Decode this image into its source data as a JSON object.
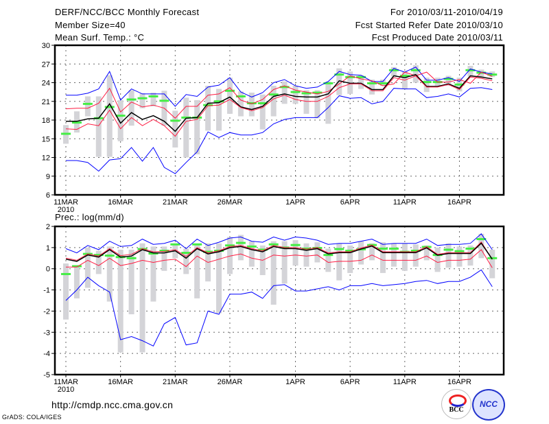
{
  "header": {
    "title": "DERF/NCC/BCC Monthly Forecast",
    "member_size": "Member Size=40",
    "variable": "Mean Surf. Temp.: °C",
    "period": "For 2010/03/11-2010/04/19",
    "start_date": "Fcst Started Refer Date 2010/03/10",
    "produced_date": "Fcst Produced Date 2010/03/11"
  },
  "footer": {
    "url": "http://cmdp.ncc.cma.gov.cn",
    "credit": "GrADS: COLA/IGES",
    "logo_bcc": "BCC",
    "logo_ncc": "NCC"
  },
  "colors": {
    "max_min": "#0000ff",
    "spread": "#ff1a40",
    "mean": "#000000",
    "obs": "#44ee44",
    "bar": "#d4d4d8"
  },
  "chart_data": [
    {
      "type": "line",
      "title": "Mean Surf. Temp.: °C",
      "ylim": [
        6,
        30
      ],
      "yticks": [
        "6",
        "9",
        "12",
        "15",
        "18",
        "21",
        "24",
        "27",
        "30"
      ],
      "xticks": [
        {
          "day": 0,
          "label": "11MAR",
          "sub": "2010"
        },
        {
          "day": 5,
          "label": "16MAR"
        },
        {
          "day": 10,
          "label": "21MAR"
        },
        {
          "day": 15,
          "label": "26MAR"
        },
        {
          "day": 21,
          "label": "1APR"
        },
        {
          "day": 26,
          "label": "6APR"
        },
        {
          "day": 31,
          "label": "11APR"
        },
        {
          "day": 36,
          "label": "16APR"
        }
      ],
      "grid": true,
      "days": 40,
      "bar_low": [
        14.2,
        16.0,
        18.6,
        12.1,
        12.1,
        14.6,
        17.1,
        19.9,
        20.2,
        17.1,
        13.6,
        12.0,
        12.5,
        16.3,
        16.3,
        19.0,
        18.6,
        18.6,
        16.5,
        18.6,
        20.6,
        20.6,
        19.0,
        18.3,
        17.4,
        22.0,
        22.2,
        23.0,
        22.1,
        23.5,
        25.0,
        23.0,
        24.0,
        22.5,
        23.5,
        23.5,
        22.6,
        25.0,
        24.8,
        24.9
      ],
      "bar_high": [
        17.2,
        19.4,
        21.8,
        21.8,
        25.2,
        21.2,
        22.8,
        22.3,
        22.4,
        22.7,
        19.5,
        21.6,
        21.2,
        23.5,
        23.0,
        24.8,
        22.6,
        22.4,
        22.1,
        23.5,
        24.2,
        23.5,
        22.8,
        22.8,
        24.2,
        26.3,
        25.8,
        25.2,
        24.5,
        24.5,
        26.5,
        25.8,
        26.8,
        24.8,
        24.8,
        25.1,
        24.8,
        26.7,
        26.1,
        25.8
      ],
      "series": [
        {
          "name": "max",
          "color": "#0000ff",
          "values": [
            22.0,
            22.0,
            22.3,
            23.0,
            25.8,
            21.2,
            23.0,
            22.2,
            22.2,
            22.2,
            20.2,
            22.1,
            21.8,
            23.3,
            23.6,
            24.8,
            22.5,
            21.7,
            22.4,
            24.0,
            24.5,
            23.5,
            23.1,
            23.3,
            24.2,
            25.8,
            25.3,
            25.2,
            24.2,
            24.2,
            26.3,
            25.7,
            26.5,
            24.4,
            24.4,
            24.8,
            24.2,
            26.2,
            25.7,
            25.4
          ]
        },
        {
          "name": "upper",
          "color": "#ff1a40",
          "values": [
            19.8,
            19.9,
            19.9,
            20.7,
            23.1,
            19.3,
            20.9,
            20.1,
            20.4,
            19.9,
            18.3,
            20.2,
            20.2,
            22.0,
            22.2,
            23.2,
            21.2,
            20.6,
            21.3,
            22.9,
            23.5,
            22.8,
            22.5,
            22.2,
            22.6,
            23.8,
            25.1,
            24.6,
            24.3,
            23.5,
            23.8,
            25.7,
            25.1,
            25.7,
            24.1,
            24.1,
            24.5,
            23.9,
            25.7,
            25.0
          ]
        },
        {
          "name": "mean",
          "color": "#000000",
          "values": [
            17.8,
            17.8,
            18.2,
            18.3,
            20.6,
            17.5,
            19.2,
            18.1,
            18.7,
            17.8,
            16.2,
            18.3,
            18.4,
            20.7,
            20.8,
            21.7,
            20.1,
            19.7,
            20.2,
            21.8,
            22.2,
            21.8,
            21.7,
            21.7,
            22.2,
            24.3,
            23.9,
            23.9,
            22.9,
            22.9,
            25.1,
            24.8,
            25.3,
            23.4,
            23.4,
            23.8,
            23.1,
            25.1,
            24.9,
            24.6
          ]
        },
        {
          "name": "lower",
          "color": "#ff1a40",
          "values": [
            16.6,
            16.5,
            17.4,
            17.1,
            19.6,
            16.6,
            18.4,
            17.1,
            18.1,
            17.1,
            15.4,
            17.8,
            18.1,
            20.3,
            20.4,
            21.3,
            20.0,
            19.5,
            20.0,
            21.4,
            22.0,
            21.3,
            21.0,
            21.0,
            21.8,
            23.2,
            23.8,
            23.8,
            22.7,
            22.7,
            24.8,
            24.4,
            25.1,
            23.3,
            23.3,
            23.7,
            22.9,
            24.9,
            24.7,
            24.3
          ]
        },
        {
          "name": "min",
          "color": "#0000ff",
          "values": [
            11.5,
            11.5,
            11.2,
            9.8,
            11.6,
            11.8,
            13.6,
            11.4,
            13.6,
            10.4,
            9.4,
            11.2,
            12.9,
            16.1,
            15.2,
            16.0,
            15.6,
            15.6,
            16.0,
            17.4,
            18.1,
            18.4,
            18.4,
            18.4,
            20.0,
            21.9,
            21.5,
            21.6,
            20.6,
            21.0,
            23.1,
            23.0,
            23.0,
            21.6,
            21.8,
            22.2,
            21.7,
            23.1,
            23.2,
            22.9
          ]
        }
      ],
      "markers": {
        "name": "green",
        "color": "#44ee44",
        "values": [
          15.8,
          17.6,
          20.6,
          18.3,
          20.1,
          18.7,
          21.3,
          21.5,
          21.8,
          21.1,
          17.9,
          18.4,
          18.4,
          20.4,
          21.0,
          22.7,
          21.8,
          20.7,
          20.7,
          22.1,
          23.3,
          22.5,
          22.3,
          22.4,
          23.9,
          25.3,
          24.9,
          24.9,
          23.9,
          23.9,
          26.0,
          25.1,
          26.0,
          24.1,
          24.1,
          24.6,
          23.7,
          26.0,
          25.6,
          25.3
        ]
      }
    },
    {
      "type": "line",
      "title": "Prec.: log(mm/d)",
      "ylim": [
        -5,
        2
      ],
      "yticks": [
        "-5",
        "-4",
        "-3",
        "-2",
        "-1",
        "0",
        "1",
        "2"
      ],
      "xticks": [
        {
          "day": 0,
          "label": "11MAR",
          "sub": "2010"
        },
        {
          "day": 5,
          "label": "16MAR"
        },
        {
          "day": 10,
          "label": "21MAR"
        },
        {
          "day": 15,
          "label": "26MAR"
        },
        {
          "day": 21,
          "label": "1APR"
        },
        {
          "day": 26,
          "label": "6APR"
        },
        {
          "day": 31,
          "label": "11APR"
        },
        {
          "day": 36,
          "label": "16APR"
        }
      ],
      "grid": true,
      "days": 40,
      "bar_low": [
        -2.4,
        -1.4,
        -0.9,
        -0.25,
        -1.55,
        -3.95,
        -2.15,
        -3.95,
        -1.55,
        -0.1,
        0.5,
        -0.25,
        -1.4,
        -0.6,
        -2.1,
        -0.25,
        0.4,
        0.1,
        -0.3,
        -1.7,
        -0.7,
        0.15,
        0.1,
        0.3,
        -0.15,
        -0.55,
        -0.2,
        0.2,
        0.4,
        -0.2,
        0.1,
        -0.1,
        0.1,
        0.4,
        -0.15,
        0.05,
        0.1,
        0.15,
        0.5,
        -0.45
      ],
      "bar_high": [
        0.25,
        0.1,
        1.0,
        0.85,
        1.05,
        0.9,
        0.9,
        1.2,
        1.05,
        1.05,
        1.2,
        0.95,
        1.15,
        1.2,
        1.2,
        1.5,
        1.6,
        1.3,
        1.1,
        1.3,
        1.3,
        1.35,
        1.2,
        1.25,
        0.95,
        1.2,
        1.1,
        1.3,
        1.2,
        1.25,
        1.2,
        1.2,
        1.15,
        1.1,
        1.0,
        1.2,
        1.05,
        1.1,
        1.65,
        0.9
      ],
      "series": [
        {
          "name": "max",
          "color": "#0000ff",
          "values": [
            0.95,
            0.75,
            1.1,
            0.9,
            1.3,
            1.05,
            1.1,
            1.4,
            1.15,
            1.2,
            1.35,
            0.95,
            1.4,
            1.1,
            1.25,
            1.45,
            1.5,
            1.3,
            1.25,
            1.5,
            1.35,
            1.5,
            1.45,
            1.35,
            1.15,
            1.2,
            1.2,
            1.3,
            1.4,
            1.15,
            1.2,
            1.2,
            1.2,
            1.4,
            1.1,
            1.15,
            1.15,
            1.2,
            1.65,
            0.9
          ]
        },
        {
          "name": "upper",
          "color": "#ff1a40",
          "values": [
            0.5,
            0.4,
            0.7,
            0.6,
            0.95,
            0.62,
            0.68,
            0.95,
            0.8,
            0.82,
            0.9,
            0.58,
            1.0,
            0.75,
            0.85,
            1.05,
            1.1,
            0.95,
            0.85,
            1.1,
            1.0,
            1.0,
            0.92,
            1.0,
            0.75,
            0.8,
            0.8,
            0.98,
            1.12,
            0.8,
            0.8,
            0.8,
            0.8,
            1.04,
            0.68,
            0.76,
            0.76,
            0.76,
            1.26,
            0.45
          ]
        },
        {
          "name": "mean",
          "color": "#000000",
          "values": [
            0.45,
            0.35,
            0.65,
            0.55,
            0.9,
            0.55,
            0.6,
            0.9,
            0.75,
            0.75,
            0.85,
            0.5,
            0.95,
            0.7,
            0.8,
            1.0,
            1.05,
            0.9,
            0.8,
            1.05,
            0.95,
            0.95,
            0.87,
            0.95,
            0.7,
            0.76,
            0.76,
            0.93,
            1.07,
            0.76,
            0.76,
            0.76,
            0.76,
            0.99,
            0.64,
            0.72,
            0.72,
            0.72,
            1.21,
            0.45
          ]
        },
        {
          "name": "lower",
          "color": "#ff1a40",
          "values": [
            0.08,
            0.08,
            0.4,
            0.15,
            0.5,
            0.15,
            0.25,
            0.4,
            0.3,
            0.4,
            0.45,
            0.1,
            0.6,
            0.3,
            0.45,
            0.6,
            0.7,
            0.5,
            0.4,
            0.65,
            0.6,
            0.65,
            0.6,
            0.65,
            0.3,
            0.35,
            0.35,
            0.4,
            0.65,
            0.4,
            0.4,
            0.4,
            0.4,
            0.6,
            0.3,
            0.4,
            0.4,
            0.45,
            0.9,
            0.05
          ]
        },
        {
          "name": "min",
          "color": "#0000ff",
          "values": [
            -1.5,
            -1.0,
            -0.4,
            -0.8,
            -1.1,
            -3.35,
            -3.2,
            -3.4,
            -3.65,
            -2.6,
            -2.3,
            -3.6,
            -3.5,
            -2.0,
            -2.15,
            -1.2,
            -1.2,
            -1.1,
            -1.4,
            -0.8,
            -0.75,
            -1.05,
            -1.05,
            -0.95,
            -0.85,
            -1.0,
            -0.8,
            -0.8,
            -0.7,
            -0.8,
            -0.75,
            -0.7,
            -0.6,
            -0.55,
            -0.7,
            -0.6,
            -0.6,
            -0.4,
            -0.05,
            -0.85
          ]
        }
      ],
      "markers": {
        "name": "green",
        "color": "#44ee44",
        "values": [
          -0.25,
          0.12,
          0.7,
          0.65,
          0.62,
          0.55,
          0.5,
          0.93,
          0.72,
          0.85,
          1.15,
          0.75,
          1.15,
          0.8,
          0.85,
          1.1,
          1.22,
          1.05,
          0.9,
          1.15,
          1.0,
          1.12,
          0.95,
          0.98,
          0.65,
          0.93,
          0.85,
          0.92,
          1.12,
          0.95,
          0.95,
          0.8,
          0.85,
          1.03,
          0.65,
          0.9,
          0.83,
          0.95,
          1.4,
          0.5
        ]
      }
    }
  ]
}
